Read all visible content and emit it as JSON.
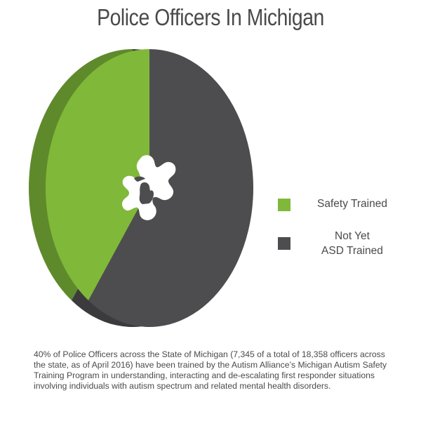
{
  "chart_data": {
    "type": "pie",
    "title": "Police Officers In Michigan",
    "slices": [
      {
        "label": "Safety Trained",
        "value": 40,
        "color": "#80b83a"
      },
      {
        "label": "Not Yet ASD Trained",
        "value": 60,
        "color": "#4d4d4f"
      }
    ],
    "legend": {
      "placement": "right",
      "items": [
        {
          "lines": [
            "Safety Trained"
          ],
          "color": "#80b83a"
        },
        {
          "lines": [
            "Not Yet",
            "ASD Trained"
          ],
          "color": "#4d4d4f"
        }
      ]
    }
  },
  "caption": "40% of Police Officers across the State of Michigan (7,345 of a total of 18,358 officers across the state, as of April 2016) have been trained by the Autism Alliance’s Michigan Autism Safety Training Program in understanding, interacting and de-escalating first responder situations involving individuals with autism spectrum and related mental health disorders.",
  "center_icon": "michigan-puzzle-piece-icon",
  "colors": {
    "green": "#80b83a",
    "green_side": "#5f8a2b",
    "dark": "#4d4d4f",
    "dark_side": "#3b3b3d"
  }
}
